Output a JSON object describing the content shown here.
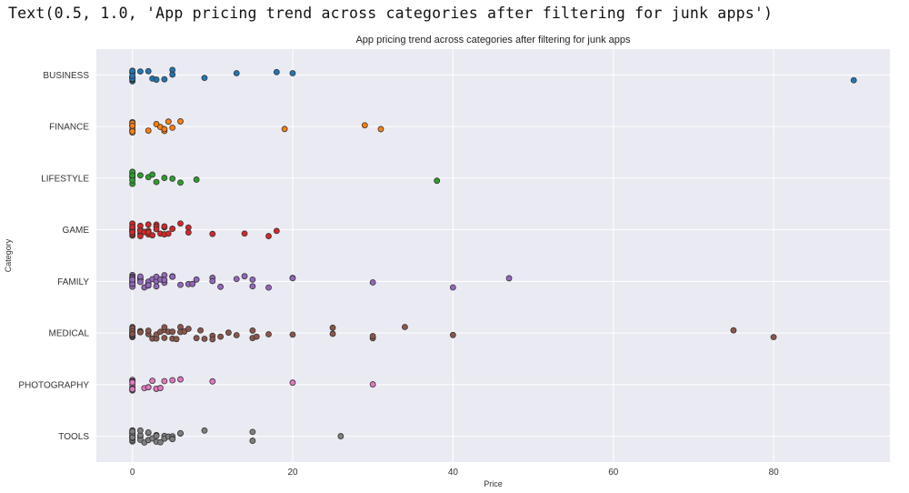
{
  "output_text": "Text(0.5, 1.0, 'App pricing trend across categories after filtering for junk apps')",
  "chart_data": {
    "type": "scatter",
    "title": "App pricing trend across categories after filtering for junk apps",
    "xlabel": "Price",
    "ylabel": "Category",
    "xlim": [
      -4.5,
      94.5
    ],
    "xticks": [
      0,
      20,
      40,
      60,
      80
    ],
    "grid": true,
    "categories": [
      "BUSINESS",
      "FINANCE",
      "LIFESTYLE",
      "GAME",
      "FAMILY",
      "MEDICAL",
      "PHOTOGRAPHY",
      "TOOLS"
    ],
    "series": [
      {
        "category": "BUSINESS",
        "color": "#1f77b4",
        "values": [
          0,
          0,
          0,
          0,
          0,
          0,
          0,
          0,
          0,
          0,
          0,
          0,
          0,
          0,
          0,
          0.99,
          1.99,
          2.49,
          2.99,
          3.99,
          4.99,
          4.99,
          8.99,
          12.99,
          17.99,
          19.99,
          89.99
        ]
      },
      {
        "category": "FINANCE",
        "color": "#ff7f0e",
        "values": [
          0,
          0,
          0,
          0,
          0,
          0,
          0,
          0,
          0,
          0,
          0,
          0,
          0,
          0,
          0,
          1.99,
          2.99,
          3.49,
          3.99,
          3.99,
          4.49,
          4.99,
          5.99,
          18.99,
          28.99,
          30.99
        ]
      },
      {
        "category": "LIFESTYLE",
        "color": "#2ca02c",
        "values": [
          0,
          0,
          0,
          0,
          0,
          0,
          0,
          0,
          0,
          0,
          0,
          0,
          0.99,
          1.99,
          2.49,
          2.99,
          3.99,
          4.99,
          5.99,
          7.99,
          37.99
        ]
      },
      {
        "category": "GAME",
        "color": "#d62728",
        "values": [
          0,
          0,
          0,
          0,
          0,
          0,
          0,
          0,
          0,
          0,
          0,
          0,
          0,
          0,
          0,
          0,
          0,
          0,
          0,
          0.99,
          0.99,
          0.99,
          0.99,
          0.99,
          1.49,
          1.99,
          1.99,
          1.99,
          1.99,
          2.49,
          2.99,
          2.99,
          2.99,
          3.49,
          3.99,
          3.99,
          3.99,
          4.49,
          4.99,
          4.99,
          5.99,
          6.99,
          6.99,
          9.99,
          13.99,
          16.99,
          17.99
        ]
      },
      {
        "category": "FAMILY",
        "color": "#9467bd",
        "values": [
          0,
          0,
          0,
          0,
          0,
          0,
          0,
          0,
          0,
          0,
          0,
          0,
          0,
          0,
          0,
          0,
          0,
          0,
          0,
          0,
          0.99,
          0.99,
          0.99,
          0.99,
          0.99,
          1.49,
          1.99,
          1.99,
          1.99,
          1.99,
          2.49,
          2.99,
          2.99,
          2.99,
          2.99,
          3.49,
          3.99,
          3.99,
          3.99,
          4.99,
          4.99,
          4.99,
          4.99,
          5.99,
          6.99,
          7.49,
          7.99,
          9.99,
          9.99,
          10.99,
          12.99,
          13.99,
          14.99,
          14.99,
          16.99,
          19.99,
          19.99,
          29.99,
          39.99,
          46.99
        ]
      },
      {
        "category": "MEDICAL",
        "color": "#8c564b",
        "values": [
          0,
          0,
          0,
          0,
          0,
          0,
          0,
          0,
          0,
          0,
          0,
          0,
          0,
          0,
          0,
          0,
          0,
          0,
          0,
          0,
          0.99,
          0.99,
          0.99,
          1.99,
          1.99,
          2.49,
          2.99,
          2.99,
          3.49,
          3.99,
          3.99,
          3.99,
          4.49,
          4.99,
          4.99,
          5.49,
          5.99,
          5.99,
          6.49,
          6.99,
          7.99,
          8.49,
          8.99,
          9.99,
          9.99,
          10.99,
          11.99,
          12.99,
          14.99,
          14.99,
          15.49,
          16.99,
          19.99,
          24.99,
          24.99,
          29.99,
          29.99,
          33.99,
          39.99,
          74.99,
          79.99
        ]
      },
      {
        "category": "PHOTOGRAPHY",
        "color": "#e377c2",
        "values": [
          0,
          0,
          0,
          0,
          0,
          0,
          0,
          0,
          0,
          0,
          0,
          0,
          1.49,
          1.99,
          1.99,
          2.49,
          2.99,
          2.99,
          3.49,
          3.99,
          4.99,
          5.99,
          9.99,
          19.99,
          29.99
        ]
      },
      {
        "category": "TOOLS",
        "color": "#7f7f7f",
        "values": [
          0,
          0,
          0,
          0,
          0,
          0,
          0,
          0,
          0,
          0,
          0,
          0,
          0,
          0,
          0,
          0,
          0,
          0,
          0,
          0,
          0.99,
          0.99,
          0.99,
          0.99,
          1.49,
          1.99,
          1.99,
          1.99,
          1.99,
          2.49,
          2.99,
          2.99,
          2.99,
          3.49,
          3.99,
          3.99,
          3.99,
          4.49,
          4.99,
          4.99,
          4.99,
          5.99,
          5.99,
          8.99,
          14.99,
          14.99,
          25.99
        ]
      }
    ]
  }
}
